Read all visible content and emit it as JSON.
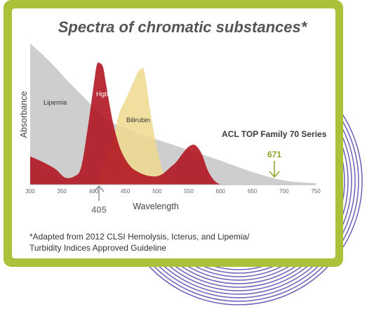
{
  "colors": {
    "card_border": "#a9c23a",
    "lipemia": "#c9c9c9",
    "bilirubin": "#efd98e",
    "hgb": "#b1111e",
    "rings": "#6a62b8",
    "accent_green": "#8aa52a",
    "marker_grey": "#8a8f95"
  },
  "chart_data": {
    "type": "area",
    "title": "Spectra of chromatic substances*",
    "xlabel": "Wavelength",
    "ylabel": "Absorbance",
    "xlim": [
      300,
      750
    ],
    "ylim": [
      0,
      100
    ],
    "x_ticks": [
      "300",
      "350",
      "400",
      "450",
      "500",
      "550",
      "600",
      "650",
      "700",
      "750"
    ],
    "series": [
      {
        "name": "Lipemia",
        "color": "#c9c9c9",
        "x": [
          300,
          320,
          340,
          360,
          380,
          400,
          420,
          450,
          480,
          520,
          560,
          600,
          650,
          700,
          750
        ],
        "values": [
          100,
          92,
          83,
          73,
          64,
          55,
          46,
          40,
          35,
          29,
          23,
          17,
          9,
          3,
          1
        ]
      },
      {
        "name": "Bilirubin",
        "color": "#efd98e",
        "x": [
          405,
          420,
          430,
          440,
          450,
          460,
          470,
          475,
          480,
          490,
          500,
          510,
          520
        ],
        "values": [
          0,
          18,
          30,
          50,
          60,
          70,
          80,
          82,
          80,
          50,
          25,
          8,
          0
        ]
      },
      {
        "name": "Hgb",
        "color": "#b1111e",
        "x": [
          300,
          320,
          340,
          355,
          370,
          380,
          390,
          400,
          405,
          410,
          415,
          420,
          430,
          440,
          450,
          460,
          470,
          480,
          490,
          500,
          510,
          520,
          530,
          540,
          550,
          560,
          570,
          580,
          590,
          600
        ],
        "values": [
          20,
          16,
          11,
          5,
          6,
          12,
          38,
          70,
          85,
          86,
          83,
          70,
          45,
          28,
          18,
          12,
          9,
          7,
          6,
          6,
          8,
          12,
          16,
          22,
          27,
          28,
          22,
          10,
          3,
          0
        ]
      }
    ],
    "series_labels": [
      "Lipemia",
      "Hgb",
      "Bilirubin"
    ],
    "annotations": {
      "instrument": "ACL TOP Family 70 Series",
      "marker_671": "671",
      "marker_405": "405"
    },
    "grid": false,
    "legend": "none"
  },
  "footnote": {
    "line1": "*Adapted from 2012 CLSI Hemolysis, Icterus, and Lipemia/",
    "line2": "Turbidity Indices Approved Guideline"
  }
}
